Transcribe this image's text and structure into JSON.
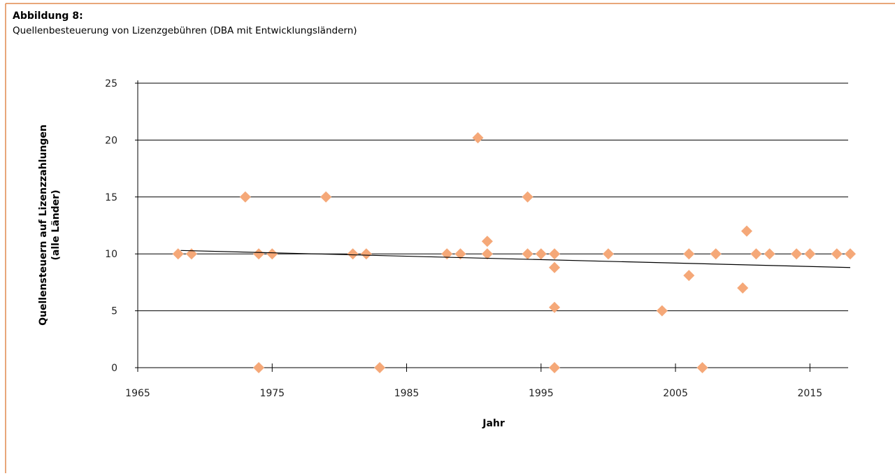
{
  "chart_data": {
    "type": "scatter",
    "title": "Abbildung 8:",
    "subtitle": "Quellenbesteuerung von Lizenzgebühren (DBA mit Entwicklungsländern)",
    "x_label": "Jahr",
    "y_label": [
      "Quellensteuern auf Lizenzzahlungen",
      "(alle Länder)"
    ],
    "xlim": [
      1965,
      2018
    ],
    "xticks": [
      1965,
      1975,
      1985,
      1995,
      2005,
      2015
    ],
    "ylim": [
      0,
      25
    ],
    "yticks": [
      0,
      5,
      10,
      15,
      20,
      25
    ],
    "grid": true,
    "color": "#f5a878",
    "x": [
      1968,
      1969,
      1973,
      1974,
      1974,
      1975,
      1979,
      1981,
      1982,
      1983,
      1988,
      1989,
      1990.3,
      1991,
      1991,
      1994,
      1994,
      1995,
      1996,
      1996,
      1996,
      1996,
      2000,
      2004,
      2006,
      2006,
      2007,
      2008,
      2010,
      2010.3,
      2011,
      2012,
      2014,
      2015,
      2017,
      2018
    ],
    "values": [
      10,
      10,
      15,
      10,
      0,
      10,
      15,
      10,
      10,
      0,
      10,
      10,
      20.2,
      11.1,
      10,
      15,
      10,
      10,
      10,
      8.8,
      5.3,
      0,
      10,
      5,
      10,
      8.1,
      0,
      10,
      7,
      12,
      10,
      10,
      10,
      10,
      10,
      10
    ],
    "trendline": {
      "x": [
        1968.2,
        2018
      ],
      "values": [
        10.3,
        8.8
      ],
      "color": "#000000"
    }
  }
}
